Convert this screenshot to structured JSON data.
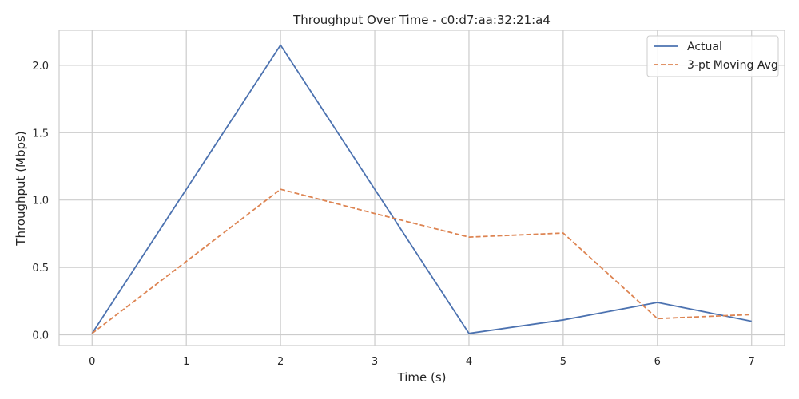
{
  "chart_data": {
    "type": "line",
    "title": "Throughput Over Time - c0:d7:aa:32:21:a4",
    "xlabel": "Time (s)",
    "ylabel": "Throughput (Mbps)",
    "x": [
      0,
      1,
      2,
      3,
      4,
      5,
      6,
      7
    ],
    "xlim": [
      -0.35,
      7.35
    ],
    "ylim": [
      -0.08,
      2.26
    ],
    "xticks": [
      0,
      1,
      2,
      3,
      4,
      5,
      6,
      7
    ],
    "xtick_labels": [
      "0",
      "1",
      "2",
      "3",
      "4",
      "5",
      "6",
      "7"
    ],
    "yticks": [
      0.0,
      0.5,
      1.0,
      1.5,
      2.0
    ],
    "ytick_labels": [
      "0.0",
      "0.5",
      "1.0",
      "1.5",
      "2.0"
    ],
    "grid": true,
    "legend_position": "top-right",
    "series": [
      {
        "name": "Actual",
        "color": "#4c72b0",
        "style": "solid",
        "values": [
          0.01,
          1.08,
          2.15,
          1.08,
          0.01,
          0.11,
          0.24,
          0.1
        ]
      },
      {
        "name": "3-pt Moving Avg",
        "color": "#dd8452",
        "style": "dashed",
        "values": [
          0.01,
          0.545,
          1.08,
          0.9,
          0.725,
          0.755,
          0.12,
          0.15
        ]
      }
    ]
  }
}
